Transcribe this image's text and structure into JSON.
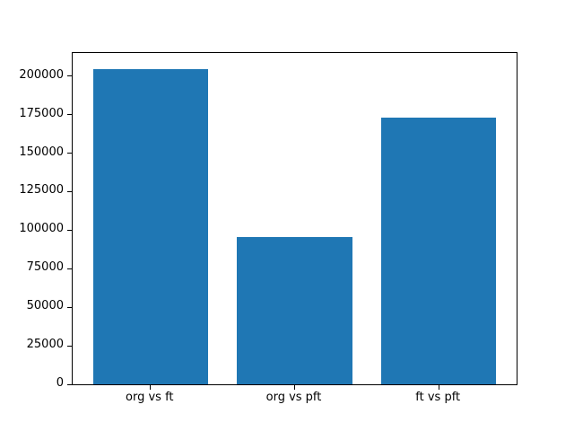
{
  "figure": {
    "background": "#ffffff"
  },
  "chart_data": {
    "type": "bar",
    "title": "",
    "xlabel": "",
    "ylabel": "",
    "categories": [
      "org vs ft",
      "org vs pft",
      "ft vs pft"
    ],
    "values": [
      204800,
      95500,
      173300
    ],
    "ylim": [
      0,
      215000
    ],
    "yticks": [
      0,
      25000,
      50000,
      75000,
      100000,
      125000,
      150000,
      175000,
      200000
    ],
    "bar_color": "#1f77b4",
    "spine_color": "#000000",
    "text_color": "#000000",
    "grid": false,
    "legend": false
  }
}
